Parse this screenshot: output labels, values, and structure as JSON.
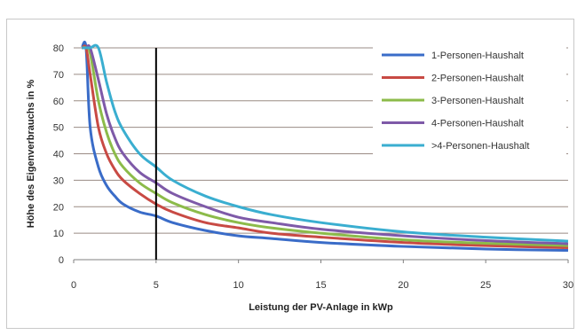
{
  "chart_data": {
    "type": "line",
    "xlabel": "Leistung der PV-Anlage in kWp",
    "ylabel": "Höhe des Eigenverbrauchs in %",
    "xlim": [
      0,
      30
    ],
    "ylim": [
      0,
      80
    ],
    "xticks": [
      0,
      5,
      10,
      15,
      20,
      25,
      30
    ],
    "yticks": [
      0,
      10,
      20,
      30,
      40,
      50,
      60,
      70,
      80
    ],
    "grid": "horizontal",
    "legend_position": "top-right",
    "reference_line_x": 5,
    "x": [
      0.5,
      0.75,
      1,
      1.5,
      2,
      2.5,
      3,
      4,
      5,
      6,
      8,
      10,
      12,
      15,
      20,
      25,
      30
    ],
    "series": [
      {
        "name": "1-Personen-Haushalt",
        "color": "#3a6cc8",
        "values": [
          80,
          80,
          50,
          35,
          28,
          24,
          21,
          18,
          16.5,
          14,
          11,
          9,
          8,
          6.5,
          5,
          4,
          3.5
        ]
      },
      {
        "name": "2-Personen-Haushalt",
        "color": "#c84a44",
        "values": [
          80,
          80,
          70,
          50,
          40,
          34,
          30,
          25,
          21,
          18,
          14,
          12,
          10,
          8.5,
          6.5,
          5.3,
          4.5
        ]
      },
      {
        "name": "3-Personen-Haushalt",
        "color": "#8cbb4a",
        "values": [
          80,
          80,
          78,
          60,
          48,
          40,
          35,
          29,
          25,
          21.5,
          17,
          14,
          12,
          10,
          7.5,
          6.2,
          5.3
        ]
      },
      {
        "name": "4-Personen-Haushalt",
        "color": "#7e5aa8",
        "values": [
          80,
          80,
          80,
          68,
          55,
          46,
          40,
          33,
          29,
          25,
          20,
          16,
          14,
          11.5,
          9,
          7.2,
          6
        ]
      },
      {
        "name": ">4-Personen-Haushalt",
        "color": "#3aaed0",
        "values": [
          80,
          80,
          80,
          80,
          67,
          56,
          49,
          40,
          35,
          30,
          24,
          20,
          17,
          14,
          10.5,
          8.5,
          7
        ]
      }
    ]
  }
}
